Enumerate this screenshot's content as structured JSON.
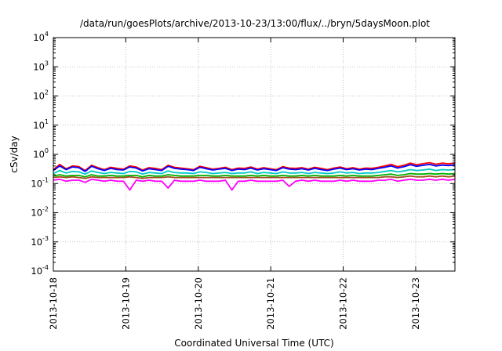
{
  "chart_data": {
    "type": "line",
    "title": "/data/run/goesPlots/archive/2013-10-23/13:00/flux/../bryn/5daysMoon.plot",
    "xlabel": "Coordinated Universal Time (UTC)",
    "ylabel": "cSv/day",
    "yscale": "log",
    "ylim": [
      0.0001,
      10000
    ],
    "xlim": [
      "2013-10-18",
      "2013-10-23 13:00"
    ],
    "x_tick_labels": [
      "2013-10-18",
      "2013-10-19",
      "2013-10-20",
      "2013-10-21",
      "2013-10-22",
      "2013-10-23"
    ],
    "y_ticks": [
      {
        "base": "10",
        "exp": "-4"
      },
      {
        "base": "10",
        "exp": "-3"
      },
      {
        "base": "10",
        "exp": "-2"
      },
      {
        "base": "10",
        "exp": "-1"
      },
      {
        "base": "10",
        "exp": "0"
      },
      {
        "base": "10",
        "exp": "1"
      },
      {
        "base": "10",
        "exp": "2"
      },
      {
        "base": "10",
        "exp": "3"
      },
      {
        "base": "10",
        "exp": "4"
      }
    ],
    "grid": true,
    "series": [
      {
        "color": "#ff0000",
        "values": [
          0.3,
          0.45,
          0.32,
          0.4,
          0.38,
          0.28,
          0.42,
          0.35,
          0.3,
          0.36,
          0.33,
          0.31,
          0.4,
          0.37,
          0.29,
          0.35,
          0.33,
          0.3,
          0.42,
          0.36,
          0.34,
          0.32,
          0.3,
          0.39,
          0.35,
          0.31,
          0.33,
          0.36,
          0.3,
          0.34,
          0.33,
          0.37,
          0.31,
          0.35,
          0.32,
          0.3,
          0.38,
          0.34,
          0.33,
          0.35,
          0.31,
          0.36,
          0.33,
          0.3,
          0.34,
          0.37,
          0.32,
          0.35,
          0.31,
          0.34,
          0.33,
          0.36,
          0.4,
          0.45,
          0.38,
          0.42,
          0.5,
          0.44,
          0.48,
          0.52,
          0.46,
          0.5,
          0.47,
          0.51
        ]
      },
      {
        "color": "#0000ff",
        "values": [
          0.28,
          0.4,
          0.3,
          0.37,
          0.35,
          0.26,
          0.39,
          0.32,
          0.28,
          0.33,
          0.3,
          0.29,
          0.37,
          0.34,
          0.27,
          0.32,
          0.3,
          0.28,
          0.39,
          0.33,
          0.31,
          0.3,
          0.28,
          0.36,
          0.32,
          0.29,
          0.31,
          0.33,
          0.28,
          0.31,
          0.3,
          0.34,
          0.29,
          0.32,
          0.3,
          0.28,
          0.35,
          0.31,
          0.3,
          0.32,
          0.29,
          0.33,
          0.3,
          0.28,
          0.31,
          0.34,
          0.3,
          0.32,
          0.29,
          0.31,
          0.3,
          0.33,
          0.36,
          0.4,
          0.34,
          0.38,
          0.44,
          0.39,
          0.42,
          0.45,
          0.4,
          0.43,
          0.41,
          0.44
        ]
      },
      {
        "color": "#00c8c8",
        "values": [
          0.22,
          0.28,
          0.23,
          0.26,
          0.25,
          0.21,
          0.27,
          0.24,
          0.22,
          0.24,
          0.23,
          0.22,
          0.26,
          0.25,
          0.21,
          0.24,
          0.23,
          0.22,
          0.27,
          0.24,
          0.23,
          0.23,
          0.22,
          0.25,
          0.24,
          0.22,
          0.23,
          0.24,
          0.22,
          0.23,
          0.23,
          0.25,
          0.22,
          0.24,
          0.23,
          0.22,
          0.25,
          0.23,
          0.23,
          0.24,
          0.22,
          0.24,
          0.23,
          0.22,
          0.23,
          0.25,
          0.23,
          0.24,
          0.22,
          0.23,
          0.23,
          0.24,
          0.26,
          0.28,
          0.25,
          0.27,
          0.3,
          0.28,
          0.29,
          0.31,
          0.28,
          0.3,
          0.29,
          0.3
        ]
      },
      {
        "color": "#00b000",
        "values": [
          0.18,
          0.2,
          0.18,
          0.19,
          0.19,
          0.17,
          0.2,
          0.18,
          0.18,
          0.19,
          0.18,
          0.18,
          0.19,
          0.19,
          0.17,
          0.19,
          0.18,
          0.18,
          0.2,
          0.19,
          0.18,
          0.18,
          0.18,
          0.19,
          0.19,
          0.18,
          0.18,
          0.19,
          0.18,
          0.18,
          0.18,
          0.19,
          0.18,
          0.19,
          0.18,
          0.18,
          0.19,
          0.18,
          0.18,
          0.19,
          0.18,
          0.19,
          0.18,
          0.18,
          0.18,
          0.19,
          0.18,
          0.19,
          0.18,
          0.18,
          0.18,
          0.19,
          0.2,
          0.21,
          0.19,
          0.2,
          0.22,
          0.21,
          0.21,
          0.22,
          0.21,
          0.22,
          0.21,
          0.22
        ]
      },
      {
        "color": "#a05020",
        "values": [
          0.16,
          0.17,
          0.16,
          0.17,
          0.16,
          0.15,
          0.17,
          0.16,
          0.16,
          0.16,
          0.16,
          0.16,
          0.17,
          0.16,
          0.15,
          0.16,
          0.16,
          0.16,
          0.17,
          0.16,
          0.16,
          0.16,
          0.16,
          0.16,
          0.16,
          0.16,
          0.16,
          0.16,
          0.16,
          0.16,
          0.16,
          0.16,
          0.16,
          0.16,
          0.16,
          0.16,
          0.16,
          0.16,
          0.16,
          0.16,
          0.16,
          0.16,
          0.16,
          0.16,
          0.16,
          0.16,
          0.16,
          0.16,
          0.16,
          0.16,
          0.16,
          0.16,
          0.17,
          0.17,
          0.16,
          0.17,
          0.18,
          0.17,
          0.17,
          0.18,
          0.17,
          0.18,
          0.17,
          0.18
        ]
      },
      {
        "color": "#ff00ff",
        "values": [
          0.13,
          0.14,
          0.12,
          0.13,
          0.13,
          0.11,
          0.14,
          0.13,
          0.12,
          0.13,
          0.12,
          0.12,
          0.06,
          0.13,
          0.12,
          0.13,
          0.12,
          0.12,
          0.07,
          0.13,
          0.12,
          0.12,
          0.12,
          0.13,
          0.12,
          0.12,
          0.12,
          0.13,
          0.06,
          0.12,
          0.12,
          0.13,
          0.12,
          0.12,
          0.12,
          0.12,
          0.13,
          0.08,
          0.12,
          0.13,
          0.12,
          0.13,
          0.12,
          0.12,
          0.12,
          0.13,
          0.12,
          0.13,
          0.12,
          0.12,
          0.12,
          0.13,
          0.13,
          0.14,
          0.12,
          0.13,
          0.14,
          0.13,
          0.13,
          0.14,
          0.13,
          0.14,
          0.13,
          0.14
        ]
      }
    ]
  }
}
